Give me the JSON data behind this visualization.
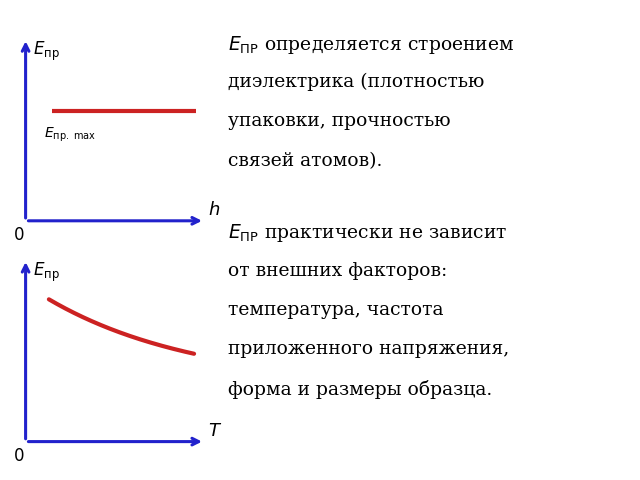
{
  "blue": "#2222cc",
  "red": "#cc2222",
  "background": "#ffffff",
  "graph1": {
    "ylabel": "$E_{\\mathrm{пр}}$",
    "xlabel": "$h$",
    "origin_label": "0",
    "curve_label": "$E_{\\mathrm{пр.\\,max}}$"
  },
  "graph2": {
    "ylabel": "$E_{\\mathrm{пр}}$",
    "xlabel": "$T$",
    "origin_label": "0"
  },
  "text1_line1": "$E_{\\mathrm{ПР}}$ определяется строением",
  "text1_line2": "диэлектрика (плотностью",
  "text1_line3": "упаковки, прочностью",
  "text1_line4": "связей атомов).",
  "text2_line1": "$E_{\\mathrm{ПР}}$ практически не зависит",
  "text2_line2": "от внешних факторов:",
  "text2_line3": "температура, частота",
  "text2_line4": "приложенного напряжения,",
  "text2_line5": "форма и размеры образца."
}
